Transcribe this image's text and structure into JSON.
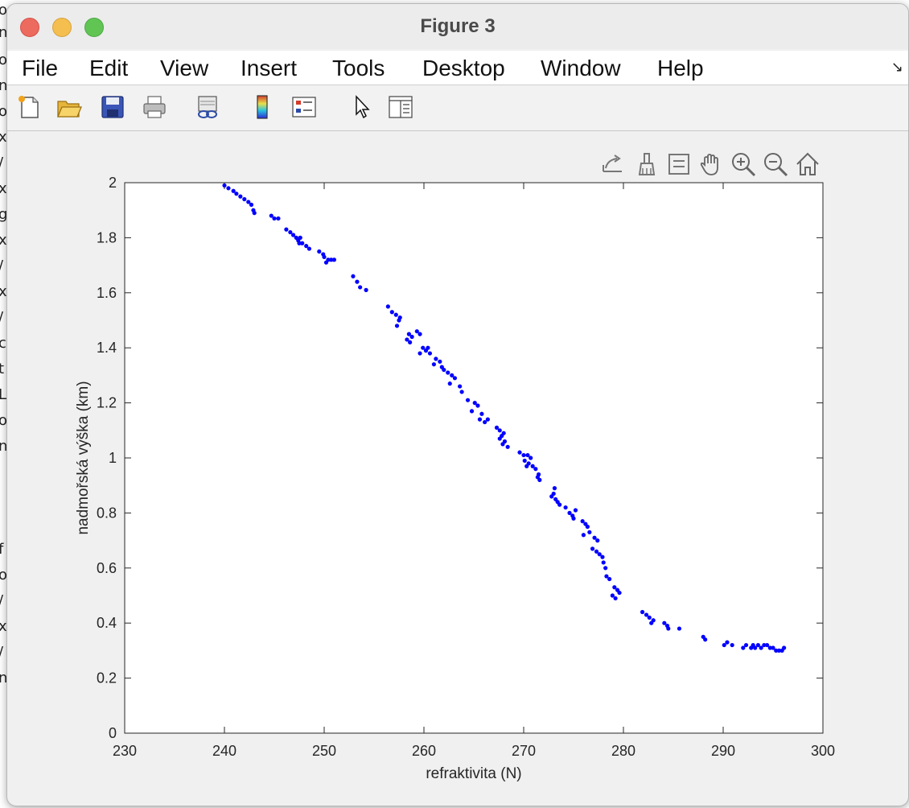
{
  "window": {
    "title": "Figure 3"
  },
  "menu": [
    "File",
    "Edit",
    "View",
    "Insert",
    "Tools",
    "Desktop",
    "Window",
    "Help"
  ],
  "background_text": [
    "o",
    "n",
    "o",
    "n",
    "o",
    "x",
    "/",
    "x",
    "g",
    "x",
    "/",
    "x",
    "/",
    "c",
    "t",
    "L",
    "o",
    "n",
    "f",
    "o",
    "/",
    "x",
    "/",
    "n"
  ],
  "toolbar": {
    "icons": [
      "new-figure-icon",
      "open-file-icon",
      "save-icon",
      "print-icon",
      "link-icon",
      "colorbar-icon",
      "legend-icon",
      "pointer-icon",
      "property-inspector-icon"
    ]
  },
  "axes_toolbar": {
    "icons": [
      "export-icon",
      "brush-icon",
      "data-tips-icon",
      "pan-icon",
      "zoom-in-icon",
      "zoom-out-icon",
      "home-icon"
    ]
  },
  "colors": {
    "marker": "#0000ff",
    "window_bg": "#f0f0f0"
  },
  "chart_data": {
    "type": "scatter",
    "title": "",
    "xlabel": "refraktivita (N)",
    "ylabel": "nadmořská výška (km)",
    "xlim": [
      230,
      300
    ],
    "ylim": [
      0,
      2
    ],
    "xticks": [
      230,
      240,
      250,
      260,
      270,
      280,
      290,
      300
    ],
    "yticks": [
      0,
      0.2,
      0.4,
      0.6,
      0.8,
      1,
      1.2,
      1.4,
      1.6,
      1.8,
      2
    ],
    "ytick_labels": [
      "0",
      "0.2",
      "0.4",
      "0.6",
      "0.8",
      "1",
      "1.2",
      "1.4",
      "1.6",
      "1.8",
      "2"
    ],
    "grid": false,
    "series": [
      {
        "marker": "dot",
        "color": "#0000ff",
        "points": [
          [
            240.0,
            1.99
          ],
          [
            240.4,
            1.98
          ],
          [
            240.9,
            1.97
          ],
          [
            241.2,
            1.96
          ],
          [
            241.6,
            1.95
          ],
          [
            242.0,
            1.94
          ],
          [
            242.4,
            1.93
          ],
          [
            242.7,
            1.92
          ],
          [
            242.9,
            1.9
          ],
          [
            243.0,
            1.89
          ],
          [
            244.7,
            1.88
          ],
          [
            245.0,
            1.87
          ],
          [
            245.4,
            1.87
          ],
          [
            246.2,
            1.83
          ],
          [
            246.6,
            1.82
          ],
          [
            246.9,
            1.81
          ],
          [
            247.2,
            1.8
          ],
          [
            247.4,
            1.79
          ],
          [
            247.6,
            1.8
          ],
          [
            247.5,
            1.78
          ],
          [
            247.8,
            1.78
          ],
          [
            248.2,
            1.77
          ],
          [
            248.5,
            1.76
          ],
          [
            249.5,
            1.75
          ],
          [
            249.9,
            1.74
          ],
          [
            250.0,
            1.73
          ],
          [
            250.4,
            1.72
          ],
          [
            250.2,
            1.71
          ],
          [
            250.7,
            1.72
          ],
          [
            251.0,
            1.72
          ],
          [
            252.9,
            1.66
          ],
          [
            253.3,
            1.64
          ],
          [
            253.6,
            1.62
          ],
          [
            254.2,
            1.61
          ],
          [
            256.4,
            1.55
          ],
          [
            256.8,
            1.53
          ],
          [
            257.2,
            1.52
          ],
          [
            257.6,
            1.51
          ],
          [
            257.5,
            1.5
          ],
          [
            257.3,
            1.48
          ],
          [
            258.5,
            1.45
          ],
          [
            258.8,
            1.44
          ],
          [
            258.3,
            1.43
          ],
          [
            258.6,
            1.42
          ],
          [
            259.3,
            1.46
          ],
          [
            259.6,
            1.45
          ],
          [
            259.9,
            1.4
          ],
          [
            260.2,
            1.39
          ],
          [
            259.6,
            1.38
          ],
          [
            260.6,
            1.38
          ],
          [
            260.4,
            1.4
          ],
          [
            261.2,
            1.36
          ],
          [
            261.6,
            1.35
          ],
          [
            261.0,
            1.34
          ],
          [
            261.8,
            1.33
          ],
          [
            262.0,
            1.32
          ],
          [
            262.4,
            1.31
          ],
          [
            262.8,
            1.3
          ],
          [
            263.1,
            1.29
          ],
          [
            262.6,
            1.27
          ],
          [
            263.6,
            1.26
          ],
          [
            263.8,
            1.24
          ],
          [
            264.4,
            1.21
          ],
          [
            265.1,
            1.2
          ],
          [
            265.4,
            1.19
          ],
          [
            264.8,
            1.17
          ],
          [
            265.8,
            1.16
          ],
          [
            265.6,
            1.14
          ],
          [
            266.4,
            1.14
          ],
          [
            266.1,
            1.13
          ],
          [
            267.3,
            1.11
          ],
          [
            267.6,
            1.1
          ],
          [
            268.0,
            1.09
          ],
          [
            267.8,
            1.08
          ],
          [
            267.6,
            1.07
          ],
          [
            268.1,
            1.06
          ],
          [
            267.9,
            1.05
          ],
          [
            268.4,
            1.04
          ],
          [
            269.6,
            1.02
          ],
          [
            270.0,
            1.01
          ],
          [
            270.4,
            1.01
          ],
          [
            270.7,
            1.0
          ],
          [
            270.1,
            0.99
          ],
          [
            270.5,
            0.98
          ],
          [
            270.3,
            0.97
          ],
          [
            270.9,
            0.97
          ],
          [
            271.2,
            0.96
          ],
          [
            271.5,
            0.94
          ],
          [
            271.4,
            0.93
          ],
          [
            271.6,
            0.92
          ],
          [
            273.1,
            0.89
          ],
          [
            273.0,
            0.87
          ],
          [
            272.8,
            0.86
          ],
          [
            273.2,
            0.85
          ],
          [
            273.4,
            0.84
          ],
          [
            273.6,
            0.83
          ],
          [
            274.2,
            0.82
          ],
          [
            274.6,
            0.8
          ],
          [
            274.9,
            0.79
          ],
          [
            275.2,
            0.81
          ],
          [
            275.0,
            0.78
          ],
          [
            275.9,
            0.77
          ],
          [
            276.2,
            0.76
          ],
          [
            276.4,
            0.75
          ],
          [
            276.0,
            0.72
          ],
          [
            276.6,
            0.73
          ],
          [
            277.1,
            0.71
          ],
          [
            277.4,
            0.7
          ],
          [
            276.9,
            0.67
          ],
          [
            277.3,
            0.66
          ],
          [
            277.6,
            0.65
          ],
          [
            277.9,
            0.64
          ],
          [
            278.0,
            0.62
          ],
          [
            278.2,
            0.6
          ],
          [
            278.3,
            0.57
          ],
          [
            278.6,
            0.56
          ],
          [
            279.1,
            0.53
          ],
          [
            279.4,
            0.52
          ],
          [
            279.6,
            0.51
          ],
          [
            278.9,
            0.5
          ],
          [
            279.2,
            0.49
          ],
          [
            281.9,
            0.44
          ],
          [
            282.3,
            0.43
          ],
          [
            282.6,
            0.42
          ],
          [
            283.0,
            0.41
          ],
          [
            282.8,
            0.4
          ],
          [
            284.1,
            0.4
          ],
          [
            284.4,
            0.39
          ],
          [
            284.5,
            0.38
          ],
          [
            285.6,
            0.38
          ],
          [
            288.0,
            0.35
          ],
          [
            288.2,
            0.34
          ],
          [
            290.1,
            0.32
          ],
          [
            290.4,
            0.33
          ],
          [
            290.9,
            0.32
          ],
          [
            292.3,
            0.32
          ],
          [
            292.8,
            0.31
          ],
          [
            293.2,
            0.31
          ],
          [
            293.5,
            0.32
          ],
          [
            293.8,
            0.31
          ],
          [
            294.1,
            0.32
          ],
          [
            294.4,
            0.32
          ],
          [
            294.7,
            0.31
          ],
          [
            295.0,
            0.31
          ],
          [
            295.3,
            0.3
          ],
          [
            295.6,
            0.3
          ],
          [
            295.9,
            0.3
          ],
          [
            296.1,
            0.31
          ],
          [
            292.0,
            0.31
          ],
          [
            293.0,
            0.32
          ]
        ]
      }
    ]
  }
}
